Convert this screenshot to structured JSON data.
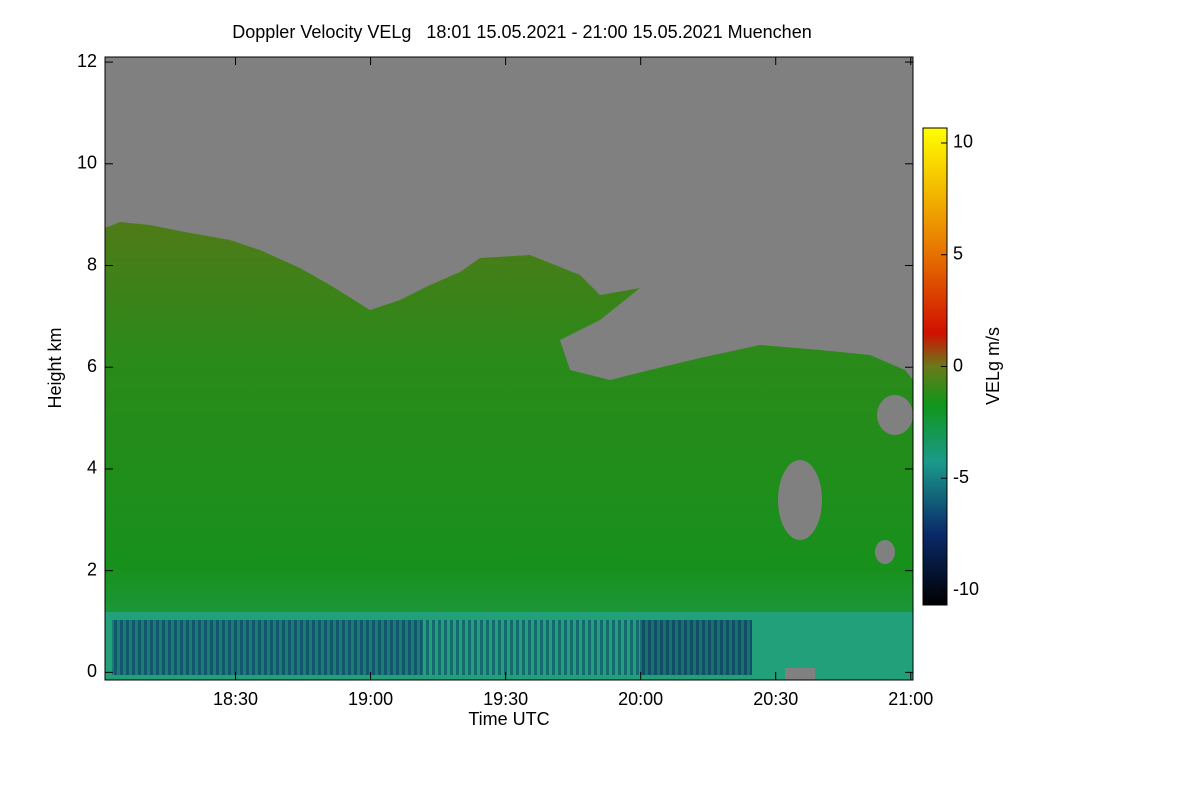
{
  "chart_data": {
    "type": "heatmap",
    "title": "Doppler Velocity VELg   18:01 15.05.2021 - 21:00 15.05.2021 Muenchen",
    "x_label": "Time UTC",
    "y_label": "Height km",
    "colorbar_label": "VELg m/s",
    "xlim": [
      18.0167,
      21.0083
    ],
    "xticks": [
      {
        "value": 18.5,
        "label": "18:30"
      },
      {
        "value": 19.0,
        "label": "19:00"
      },
      {
        "value": 19.5,
        "label": "19:30"
      },
      {
        "value": 20.0,
        "label": "20:00"
      },
      {
        "value": 20.5,
        "label": "20:30"
      },
      {
        "value": 21.0,
        "label": "21:00"
      }
    ],
    "ylim": [
      -0.15,
      12.1
    ],
    "yticks": [
      0,
      2,
      4,
      6,
      8,
      10,
      12
    ],
    "clim": [
      -10.67,
      10.67
    ],
    "cticks": [
      -10,
      -5,
      0,
      5,
      10
    ]
  }
}
